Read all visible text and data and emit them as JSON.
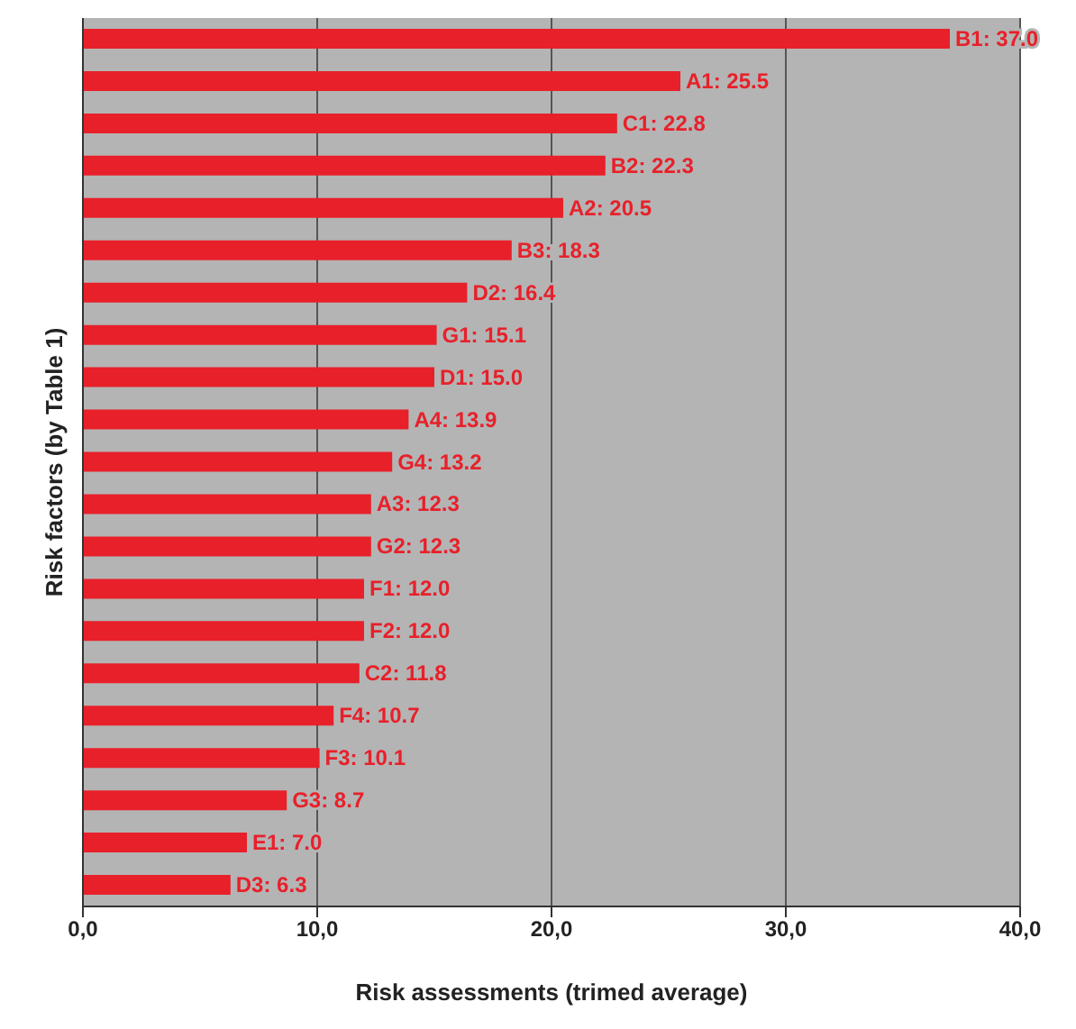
{
  "chart_data": {
    "type": "bar",
    "orientation": "horizontal",
    "xlabel": "Risk assessments (trimed average)",
    "ylabel": "Risk factors (by Table 1)",
    "categories": [
      null,
      null,
      null,
      null,
      null,
      null,
      null,
      null,
      null,
      null,
      null,
      null,
      null,
      null,
      null,
      null,
      null,
      null,
      null,
      null,
      null
    ],
    "values": [
      37.0,
      25.5,
      22.8,
      22.3,
      20.5,
      18.3,
      16.4,
      15.1,
      15.0,
      13.9,
      13.2,
      12.3,
      12.3,
      12.0,
      12.0,
      11.8,
      10.7,
      10.1,
      8.7,
      7.0,
      6.3
    ],
    "value_labels": [
      "B1: 37.0",
      "A1: 25.5",
      "C1: 22.8",
      "B2: 22.3",
      "A2: 20.5",
      "B3: 18.3",
      "D2: 16.4",
      "G1: 15.1",
      "D1: 15.0",
      "A4: 13.9",
      "G4: 13.2",
      "A3: 12.3",
      "G2: 12.3",
      "F1: 12.0",
      "F2: 12.0",
      "C2: 11.8",
      "F4: 10.7",
      "F3: 10.1",
      "G3: 8.7",
      "E1: 7.0",
      "D3: 6.3"
    ],
    "color": "#e8202a",
    "xlim": [
      0,
      40
    ],
    "xticks": [
      {
        "value": 0,
        "label": "0,0"
      },
      {
        "value": 10,
        "label": "10,0"
      },
      {
        "value": 20,
        "label": "20,0"
      },
      {
        "value": 30,
        "label": "30,0"
      },
      {
        "value": 40,
        "label": "40,0"
      }
    ],
    "grid": "x",
    "tick_labels": "x"
  }
}
